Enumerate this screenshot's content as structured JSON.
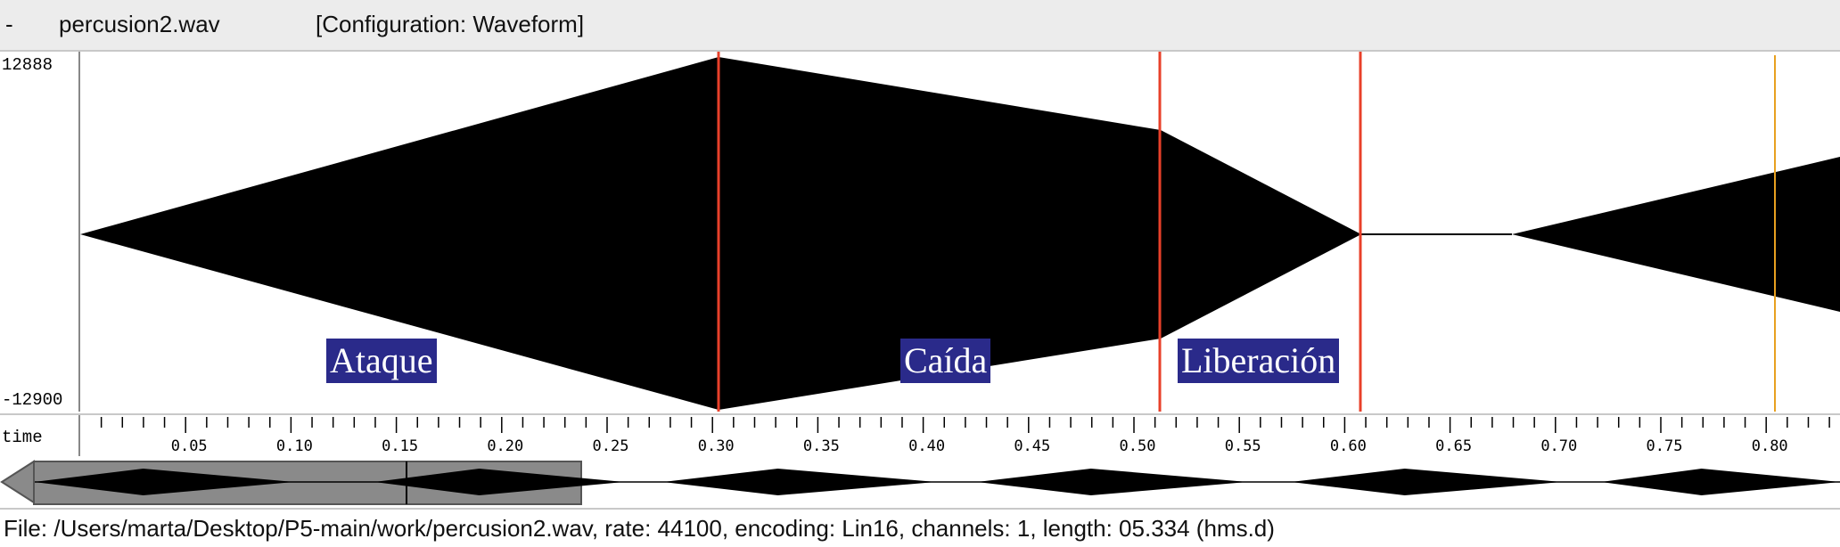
{
  "window": {
    "menu_glyph": "-",
    "filename": "percusion2.wav",
    "configuration": "[Configuration: Waveform]"
  },
  "waveform": {
    "y_max_label": "12888",
    "y_min_label": "-12900",
    "envelope_color": "#000000",
    "marker_color": "#e8402a",
    "cursor_color": "#e8a020",
    "markers_s": [
      0.3,
      0.5,
      0.59
    ],
    "cursor_s": 0.79,
    "segments": [
      {
        "label": "Ataque"
      },
      {
        "label": "Caída"
      },
      {
        "label": "Liberación"
      }
    ]
  },
  "timeline": {
    "axis_label": "time",
    "ticks": [
      "0.05",
      "0.10",
      "0.15",
      "0.20",
      "0.25",
      "0.30",
      "0.35",
      "0.40",
      "0.45",
      "0.50",
      "0.55",
      "0.60",
      "0.65",
      "0.70",
      "0.75",
      "0.80"
    ]
  },
  "overview": {
    "arrow_icon": "left-arrow-icon",
    "selection_color": "#8a8a8a"
  },
  "status": {
    "text": "File: /Users/marta/Desktop/P5-main/work/percusion2.wav, rate: 44100, encoding: Lin16, channels: 1, length: 05.334 (hms.d)"
  }
}
